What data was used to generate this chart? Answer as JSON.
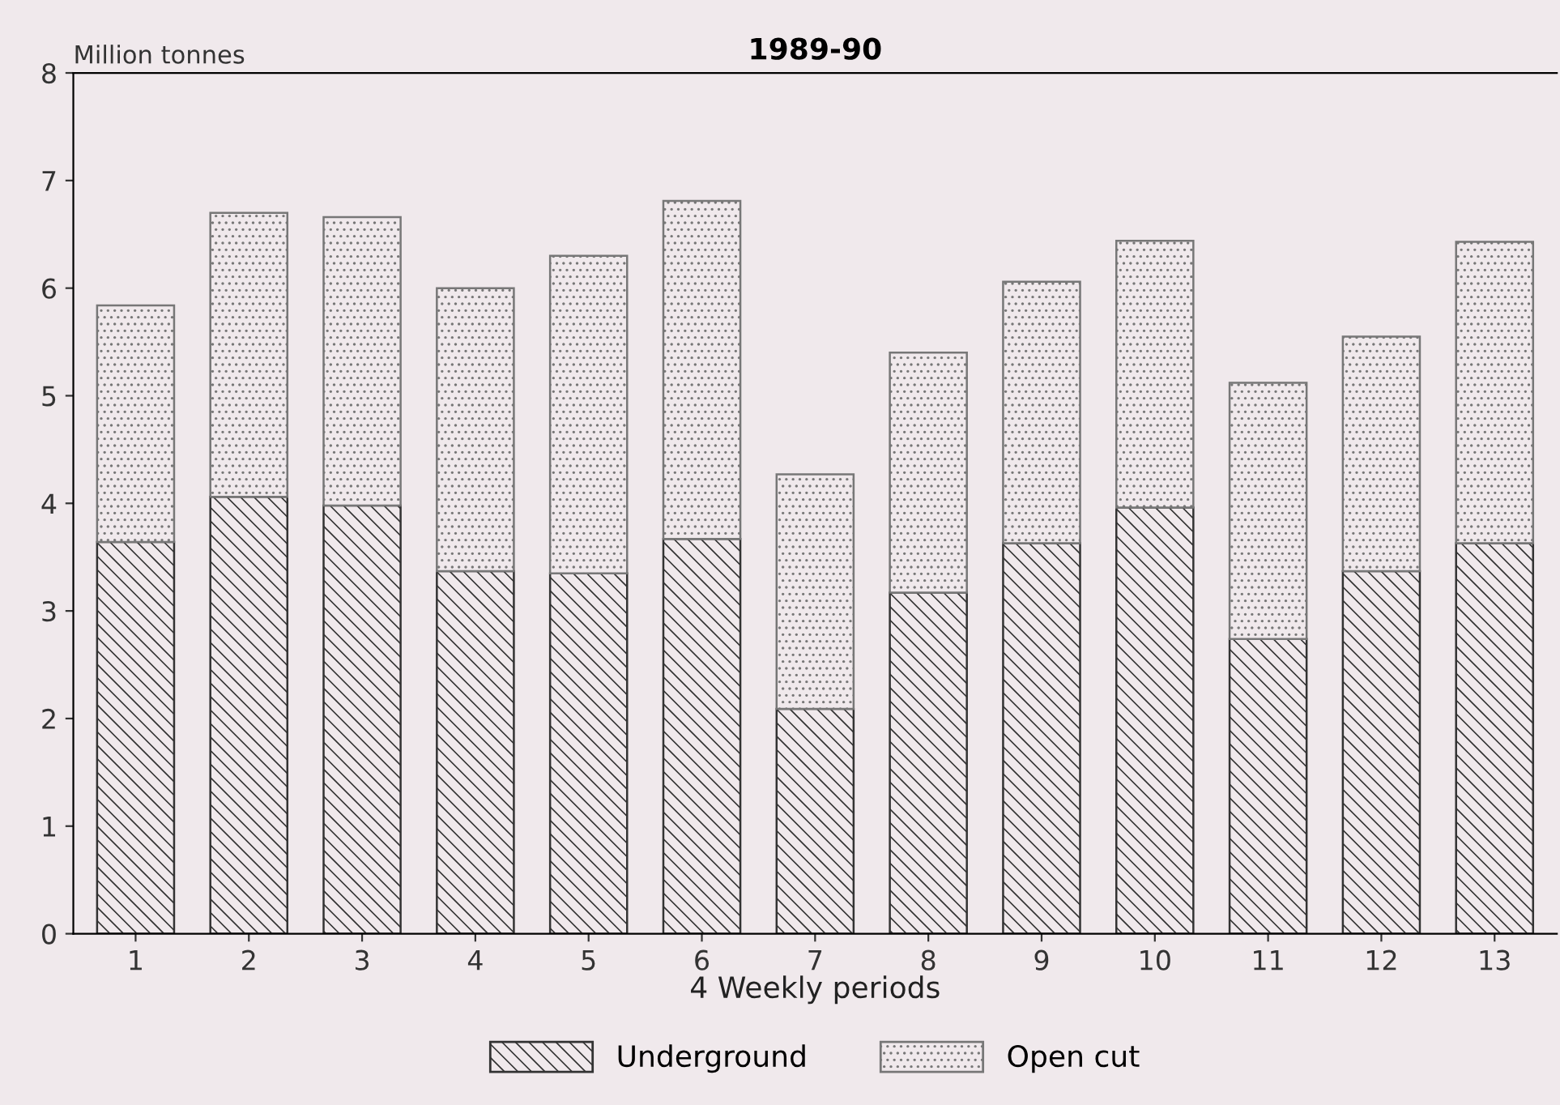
{
  "chart_data": {
    "type": "bar",
    "title": "1989-90",
    "ylabel": "Million tonnes",
    "xlabel": "4 Weekly periods",
    "categories": [
      "1",
      "2",
      "3",
      "4",
      "5",
      "6",
      "7",
      "8",
      "9",
      "10",
      "11",
      "12",
      "13"
    ],
    "stacked": true,
    "series": [
      {
        "name": "Underground",
        "color": "#333333",
        "values": [
          3.64,
          4.06,
          3.98,
          3.37,
          3.35,
          3.67,
          2.09,
          3.17,
          3.63,
          3.96,
          2.74,
          3.37,
          3.63
        ]
      },
      {
        "name": "Open cut",
        "color": "#777777",
        "values": [
          2.2,
          2.64,
          2.68,
          2.63,
          2.95,
          3.14,
          2.18,
          2.23,
          2.43,
          2.48,
          2.38,
          2.18,
          2.8
        ]
      }
    ],
    "ylim": [
      0,
      8
    ],
    "yticks": [
      0,
      1,
      2,
      3,
      4,
      5,
      6,
      7,
      8
    ],
    "grid": false,
    "legend": "bottom"
  }
}
